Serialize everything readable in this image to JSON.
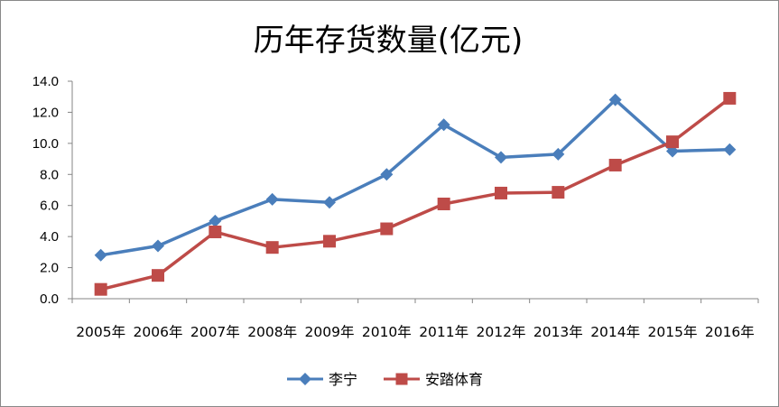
{
  "chart_data": {
    "type": "line",
    "title": "历年存货数量(亿元)",
    "categories": [
      "2005年",
      "2006年",
      "2007年",
      "2008年",
      "2009年",
      "2010年",
      "2011年",
      "2012年",
      "2013年",
      "2014年",
      "2015年",
      "2016年"
    ],
    "series": [
      {
        "name": "李宁",
        "color": "#4a7ebb",
        "marker": "diamond",
        "values": [
          2.8,
          3.4,
          5.0,
          6.4,
          6.2,
          8.0,
          11.2,
          9.1,
          9.3,
          12.8,
          9.5,
          9.6
        ]
      },
      {
        "name": "安踏体育",
        "color": "#be4b48",
        "marker": "square",
        "values": [
          0.6,
          1.5,
          4.3,
          3.3,
          3.7,
          4.5,
          6.1,
          6.8,
          6.85,
          8.6,
          10.1,
          12.9
        ]
      }
    ],
    "ylim": [
      0,
      14
    ],
    "yticks": [
      "0.0",
      "2.0",
      "4.0",
      "6.0",
      "8.0",
      "10.0",
      "12.0",
      "14.0"
    ],
    "grid": false,
    "legend": "bottom"
  }
}
